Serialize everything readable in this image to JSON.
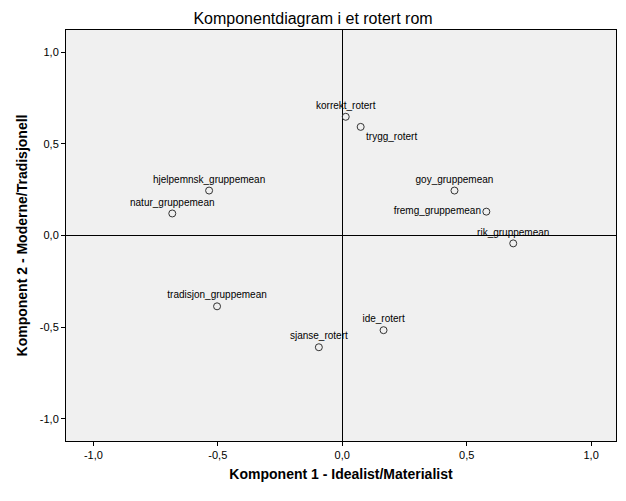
{
  "chart_data": {
    "type": "scatter",
    "title": "Komponentdiagram i et rotert rom",
    "x_label": "Komponent 1 - Idealist/Materialist",
    "y_label": "Komponent 2 - Moderne/Tradisjonell",
    "labels": [
      "korrekt_rotert",
      "trygg_rotert",
      "hjelpemnsk_gruppemean",
      "natur_gruppemean",
      "goy_gruppemean",
      "fremg_gruppemean",
      "rik_gruppemean",
      "tradisjon_gruppemean",
      "ide_rotert",
      "sjanse_rotert"
    ],
    "x": [
      0.014,
      0.074,
      -0.535,
      -0.683,
      0.451,
      0.579,
      0.687,
      -0.503,
      0.166,
      -0.094
    ],
    "values": [
      0.647,
      0.592,
      0.245,
      0.12,
      0.245,
      0.13,
      -0.043,
      -0.386,
      -0.516,
      -0.609
    ],
    "marker": "circle-open",
    "color": "#333333",
    "xlim": [
      -1.11,
      1.1
    ],
    "ylim": [
      -1.12,
      1.12
    ],
    "xticks": [
      {
        "value": -1.0,
        "label": "-1,0"
      },
      {
        "value": -0.5,
        "label": "-0,5"
      },
      {
        "value": 0.0,
        "label": "0,0"
      },
      {
        "value": 0.5,
        "label": "0,5"
      },
      {
        "value": 1.0,
        "label": "1,0"
      }
    ],
    "yticks": [
      {
        "value": -1.0,
        "label": "-1,0"
      },
      {
        "value": -0.5,
        "label": "-0,5"
      },
      {
        "value": 0.0,
        "label": "0,0"
      },
      {
        "value": 0.5,
        "label": "0,5"
      },
      {
        "value": 1.0,
        "label": "1,0"
      }
    ],
    "grid": false
  }
}
